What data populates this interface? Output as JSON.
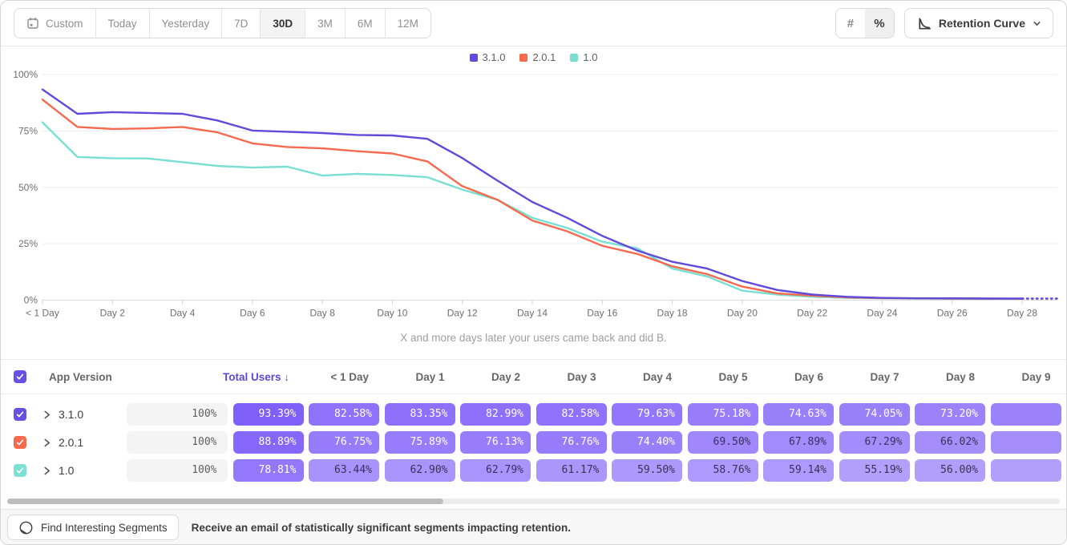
{
  "toolbar": {
    "date_ranges": [
      "Custom",
      "Today",
      "Yesterday",
      "7D",
      "30D",
      "3M",
      "6M",
      "12M"
    ],
    "selected_range": "30D",
    "mode_hash": "#",
    "mode_percent": "%",
    "selected_mode": "%",
    "chart_type_label": "Retention Curve"
  },
  "legend": [
    {
      "label": "3.1.0",
      "color": "#5f4bdb"
    },
    {
      "label": "2.0.1",
      "color": "#f6694e"
    },
    {
      "label": "1.0",
      "color": "#79dfd2"
    }
  ],
  "chart_data": {
    "type": "line",
    "title": "Retention Curve",
    "caption": "X and more days later your users came back and did B.",
    "x_range": [
      0,
      29
    ],
    "x_tick_labels": [
      "< 1 Day",
      "Day 2",
      "Day 4",
      "Day 6",
      "Day 8",
      "Day 10",
      "Day 12",
      "Day 14",
      "Day 16",
      "Day 18",
      "Day 20",
      "Day 22",
      "Day 24",
      "Day 26",
      "Day 28"
    ],
    "ylim": [
      0,
      100
    ],
    "ytick_values": [
      0,
      25,
      50,
      75,
      100
    ],
    "ytick_labels": [
      "0%",
      "25%",
      "50%",
      "75%",
      "100%"
    ],
    "grid": true,
    "legend_position": "top-center",
    "last_segment_dashed": true,
    "series": [
      {
        "name": "3.1.0",
        "color": "#5f4bdb",
        "values": [
          93.39,
          82.58,
          83.35,
          82.99,
          82.58,
          79.63,
          75.18,
          74.63,
          74.05,
          73.2,
          73,
          71.5,
          63,
          53,
          43.5,
          36.5,
          28.5,
          22,
          17,
          14,
          8.5,
          4.5,
          2.5,
          1.5,
          1,
          0.8,
          0.8,
          0.7,
          0.7,
          0.7
        ]
      },
      {
        "name": "2.0.1",
        "color": "#f6694e",
        "values": [
          88.89,
          76.75,
          75.89,
          76.13,
          76.76,
          74.4,
          69.5,
          67.89,
          67.29,
          66.02,
          65,
          61.5,
          50.5,
          44.5,
          35.3,
          30.5,
          24.1,
          20.5,
          15,
          11.5,
          6,
          3,
          2,
          1.2,
          0.9,
          0.8,
          0.7,
          0.7,
          0.6,
          0.6
        ]
      },
      {
        "name": "1.0",
        "color": "#79dfd2",
        "values": [
          78.81,
          63.44,
          62.9,
          62.79,
          61.17,
          59.5,
          58.76,
          59.14,
          55.19,
          56,
          55.5,
          54.5,
          49,
          44.5,
          36.5,
          32,
          25.9,
          23,
          14,
          10.5,
          4.2,
          2.5,
          1.5,
          1,
          0.8,
          0.7,
          0.6,
          0.6,
          0.6,
          0.6
        ]
      }
    ]
  },
  "table": {
    "headers": [
      "App Version",
      "Total Users",
      "< 1 Day",
      "Day 1",
      "Day 2",
      "Day 3",
      "Day 4",
      "Day 5",
      "Day 6",
      "Day 7",
      "Day 8",
      "Day 9"
    ],
    "sort_indicator": "↓",
    "sorted_by": "Total Users",
    "select_all_checked": true,
    "pill_base_rgb": "118,84,250",
    "rows": [
      {
        "version": "3.1.0",
        "color": "#6552e2",
        "checked": true,
        "total": "100%",
        "cells": [
          "93.39%",
          "82.58%",
          "83.35%",
          "82.99%",
          "82.58%",
          "79.63%",
          "75.18%",
          "74.63%",
          "74.05%",
          "73.20%"
        ]
      },
      {
        "version": "2.0.1",
        "color": "#f8694d",
        "checked": true,
        "total": "100%",
        "cells": [
          "88.89%",
          "76.75%",
          "75.89%",
          "76.13%",
          "76.76%",
          "74.40%",
          "69.50%",
          "67.89%",
          "67.29%",
          "66.02%"
        ]
      },
      {
        "version": "1.0",
        "color": "#7ce0d3",
        "checked": true,
        "total": "100%",
        "cells": [
          "78.81%",
          "63.44%",
          "62.90%",
          "62.79%",
          "61.17%",
          "59.50%",
          "58.76%",
          "59.14%",
          "55.19%",
          "56.00%"
        ]
      }
    ]
  },
  "footer": {
    "button_label": "Find Interesting Segments",
    "message": "Receive an email of statistically significant segments impacting retention."
  }
}
